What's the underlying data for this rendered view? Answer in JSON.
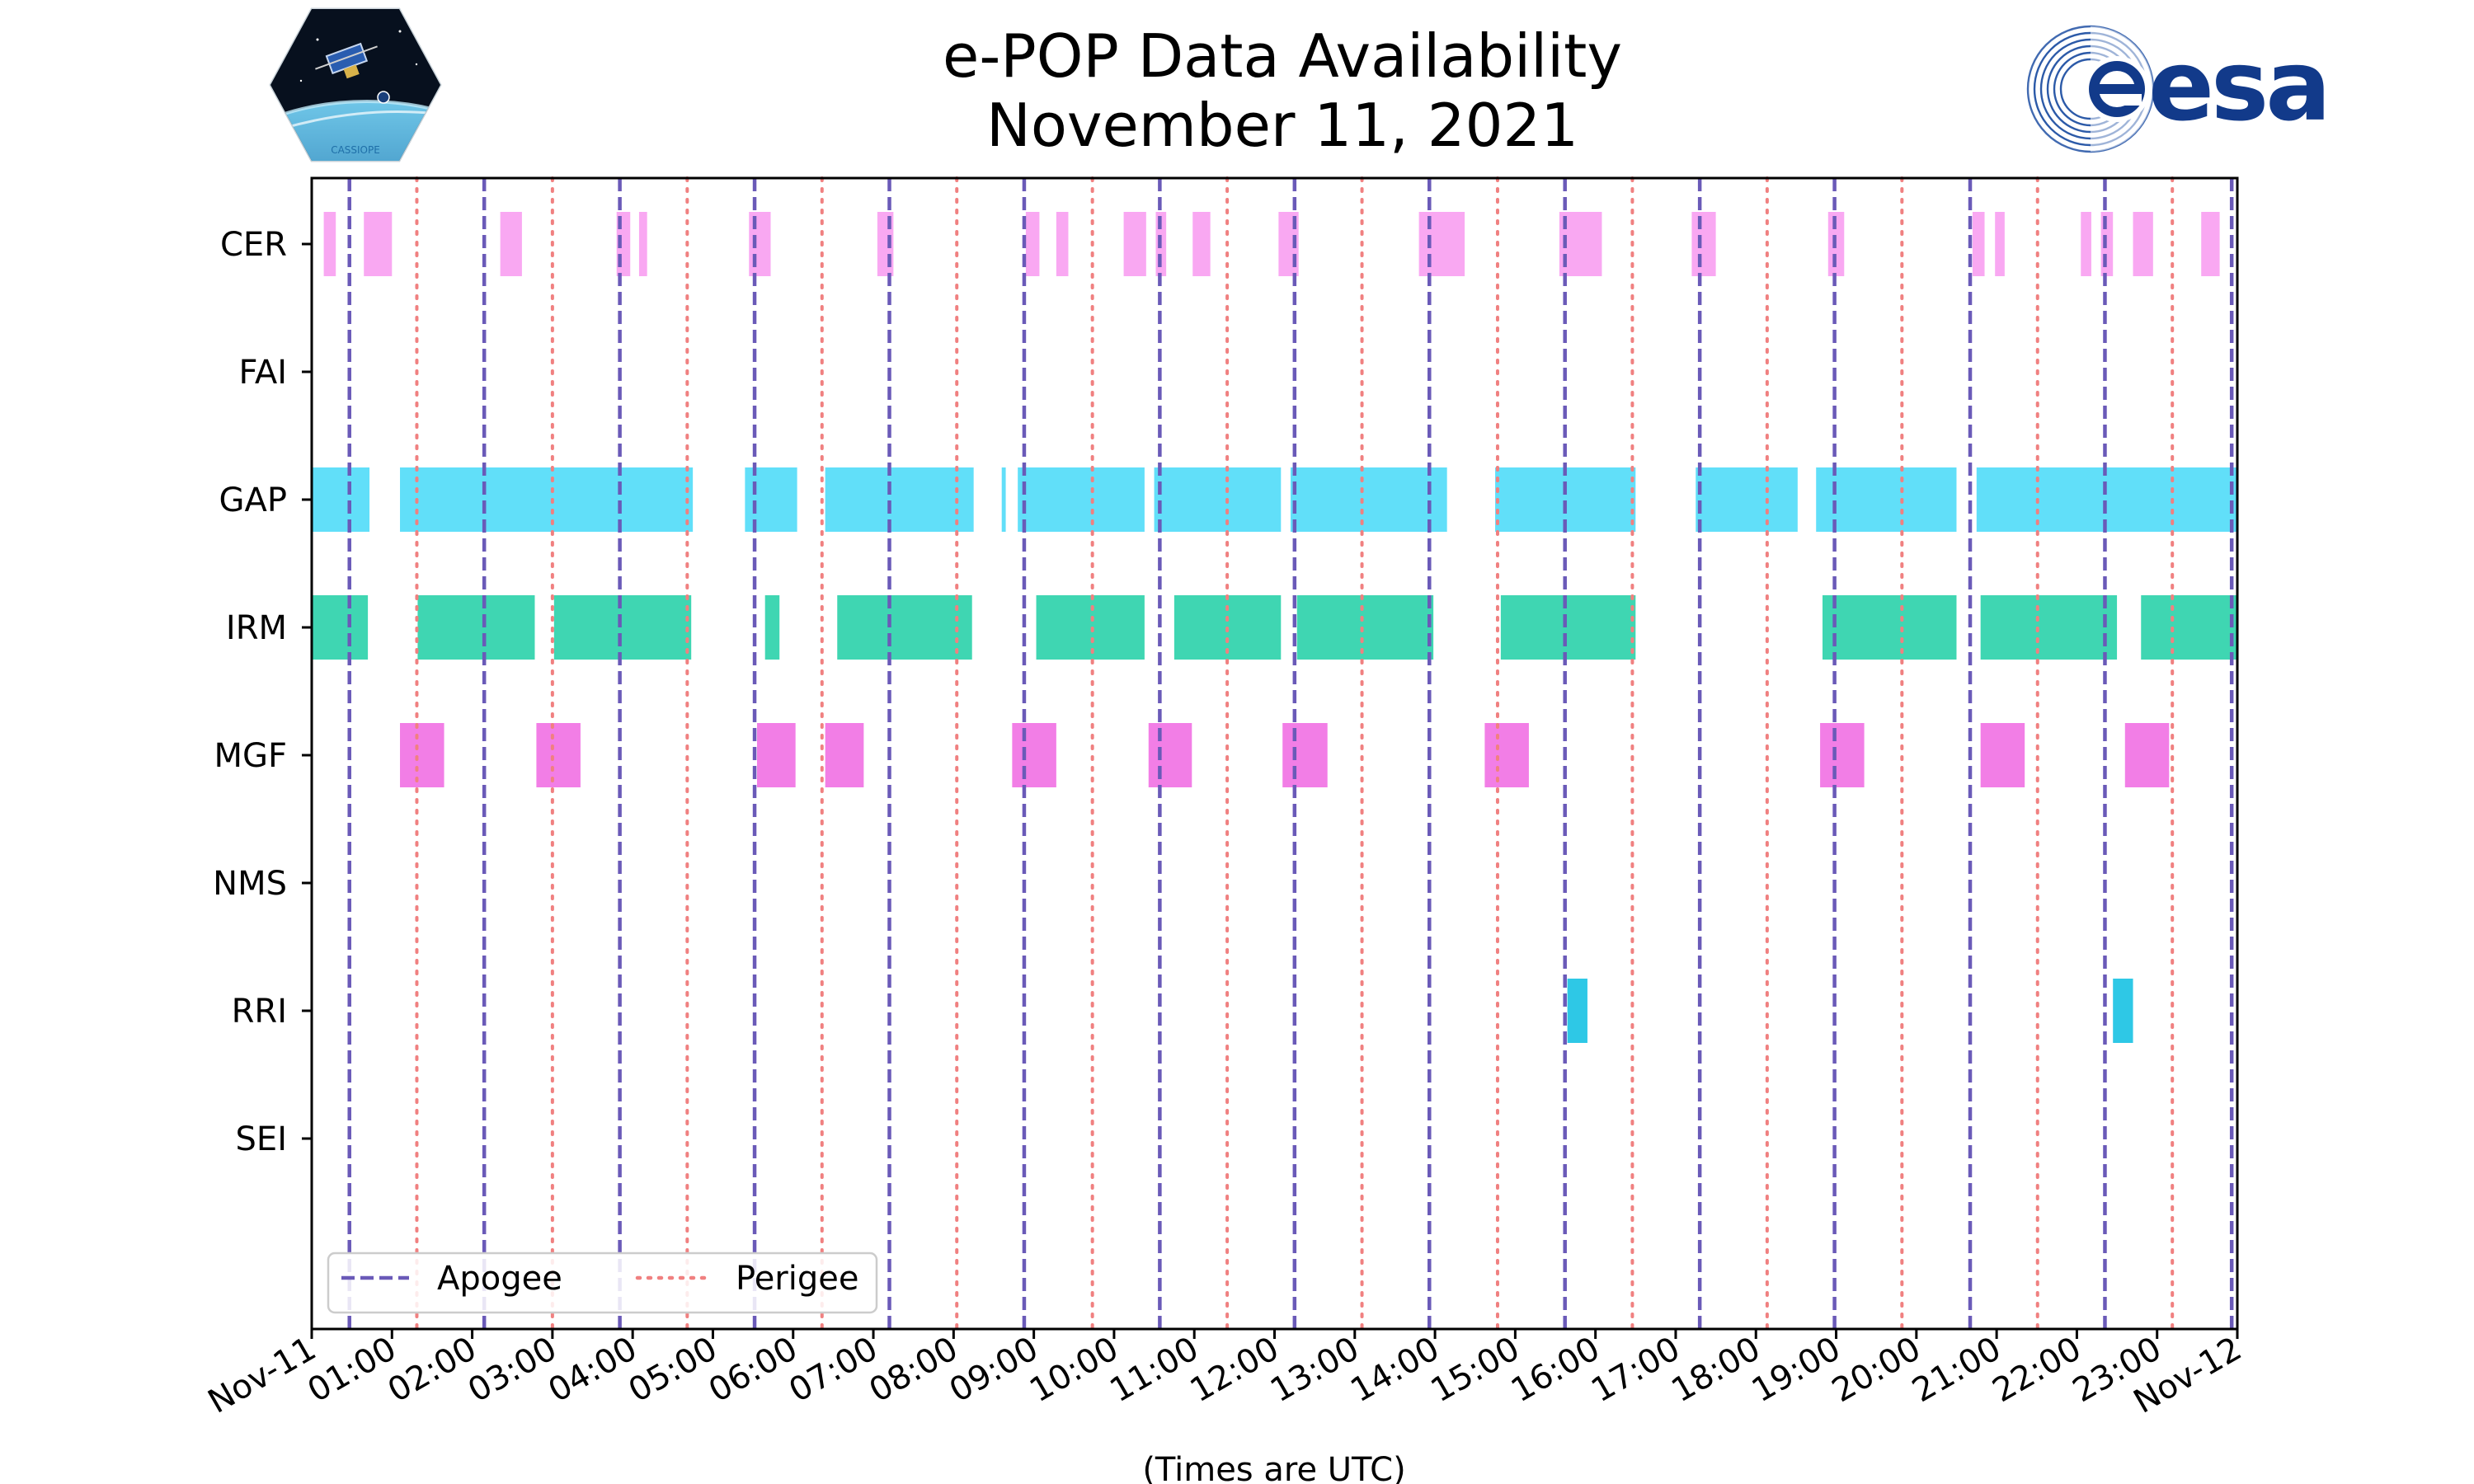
{
  "logos": {
    "left_label": "CASSIOPE",
    "right_label": "esa"
  },
  "chart_data": {
    "type": "timeline",
    "title": "e-POP Data Availability",
    "subtitle": "November 11, 2021",
    "xlabel": "(Times are UTC)",
    "xlim": [
      0,
      24
    ],
    "x_ticks": [
      {
        "t": 0,
        "label": "Nov-11"
      },
      {
        "t": 1,
        "label": "01:00"
      },
      {
        "t": 2,
        "label": "02:00"
      },
      {
        "t": 3,
        "label": "03:00"
      },
      {
        "t": 4,
        "label": "04:00"
      },
      {
        "t": 5,
        "label": "05:00"
      },
      {
        "t": 6,
        "label": "06:00"
      },
      {
        "t": 7,
        "label": "07:00"
      },
      {
        "t": 8,
        "label": "08:00"
      },
      {
        "t": 9,
        "label": "09:00"
      },
      {
        "t": 10,
        "label": "10:00"
      },
      {
        "t": 11,
        "label": "11:00"
      },
      {
        "t": 12,
        "label": "12:00"
      },
      {
        "t": 13,
        "label": "13:00"
      },
      {
        "t": 14,
        "label": "14:00"
      },
      {
        "t": 15,
        "label": "15:00"
      },
      {
        "t": 16,
        "label": "16:00"
      },
      {
        "t": 17,
        "label": "17:00"
      },
      {
        "t": 18,
        "label": "18:00"
      },
      {
        "t": 19,
        "label": "19:00"
      },
      {
        "t": 20,
        "label": "20:00"
      },
      {
        "t": 21,
        "label": "21:00"
      },
      {
        "t": 22,
        "label": "22:00"
      },
      {
        "t": 23,
        "label": "23:00"
      },
      {
        "t": 24,
        "label": "Nov-12"
      }
    ],
    "instruments": [
      {
        "name": "CER",
        "color": "#f9a8f2",
        "height": 0.5,
        "intervals": [
          [
            0.15,
            0.3
          ],
          [
            0.65,
            1.0
          ],
          [
            2.35,
            2.62
          ],
          [
            3.8,
            3.97
          ],
          [
            4.08,
            4.18
          ],
          [
            5.45,
            5.72
          ],
          [
            7.05,
            7.25
          ],
          [
            8.9,
            9.07
          ],
          [
            9.28,
            9.43
          ],
          [
            10.12,
            10.4
          ],
          [
            10.52,
            10.65
          ],
          [
            10.98,
            11.2
          ],
          [
            12.05,
            12.3
          ],
          [
            13.8,
            14.37
          ],
          [
            15.55,
            16.08
          ],
          [
            17.2,
            17.5
          ],
          [
            18.9,
            19.1
          ],
          [
            20.7,
            20.85
          ],
          [
            20.98,
            21.1
          ],
          [
            22.05,
            22.18
          ],
          [
            22.3,
            22.45
          ],
          [
            22.7,
            22.95
          ],
          [
            23.55,
            23.78
          ]
        ]
      },
      {
        "name": "FAI",
        "color": "#f9a8f2",
        "height": 0.5,
        "intervals": []
      },
      {
        "name": "GAP",
        "color": "#61dff9",
        "height": 0.5,
        "intervals": [
          [
            0.0,
            0.72
          ],
          [
            1.1,
            4.75
          ],
          [
            5.4,
            6.05
          ],
          [
            6.4,
            8.25
          ],
          [
            8.6,
            8.65
          ],
          [
            8.8,
            10.38
          ],
          [
            10.5,
            12.08
          ],
          [
            12.2,
            14.15
          ],
          [
            14.75,
            16.5
          ],
          [
            17.25,
            18.52
          ],
          [
            18.75,
            20.5
          ],
          [
            20.75,
            24.0
          ]
        ]
      },
      {
        "name": "IRM",
        "color": "#3fd6b2",
        "height": 0.5,
        "intervals": [
          [
            0.0,
            0.7
          ],
          [
            1.32,
            2.78
          ],
          [
            3.02,
            4.73
          ],
          [
            5.65,
            5.83
          ],
          [
            6.55,
            8.23
          ],
          [
            9.03,
            10.38
          ],
          [
            10.75,
            12.08
          ],
          [
            12.28,
            13.98
          ],
          [
            14.82,
            16.5
          ],
          [
            18.83,
            20.5
          ],
          [
            20.8,
            22.5
          ],
          [
            22.8,
            24.0
          ]
        ]
      },
      {
        "name": "MGF",
        "color": "#f27ee6",
        "height": 0.5,
        "intervals": [
          [
            1.1,
            1.65
          ],
          [
            2.8,
            3.35
          ],
          [
            5.55,
            6.03
          ],
          [
            6.4,
            6.88
          ],
          [
            8.73,
            9.28
          ],
          [
            10.43,
            10.97
          ],
          [
            12.1,
            12.66
          ],
          [
            14.62,
            15.17
          ],
          [
            18.8,
            19.35
          ],
          [
            20.8,
            21.35
          ],
          [
            22.6,
            23.15
          ]
        ]
      },
      {
        "name": "NMS",
        "color": "#f27ee6",
        "height": 0.5,
        "intervals": []
      },
      {
        "name": "RRI",
        "color": "#2ec8e6",
        "height": 0.5,
        "intervals": [
          [
            15.65,
            15.9
          ],
          [
            22.45,
            22.7
          ]
        ]
      },
      {
        "name": "SEI",
        "color": "#2ec8e6",
        "height": 0.5,
        "intervals": []
      }
    ],
    "apogee": {
      "label": "Apogee",
      "color": "#6a5ab8",
      "times": [
        0.47,
        2.15,
        3.84,
        5.52,
        7.2,
        8.88,
        10.57,
        12.25,
        13.93,
        15.62,
        17.3,
        18.98,
        20.67,
        22.35,
        23.93
      ]
    },
    "perigee": {
      "label": "Perigee",
      "color": "#f08080",
      "times": [
        1.31,
        3.0,
        4.68,
        6.36,
        8.04,
        9.73,
        11.41,
        13.09,
        14.78,
        16.46,
        18.14,
        19.82,
        21.51,
        23.19
      ]
    },
    "legend_position": "lower-left"
  }
}
